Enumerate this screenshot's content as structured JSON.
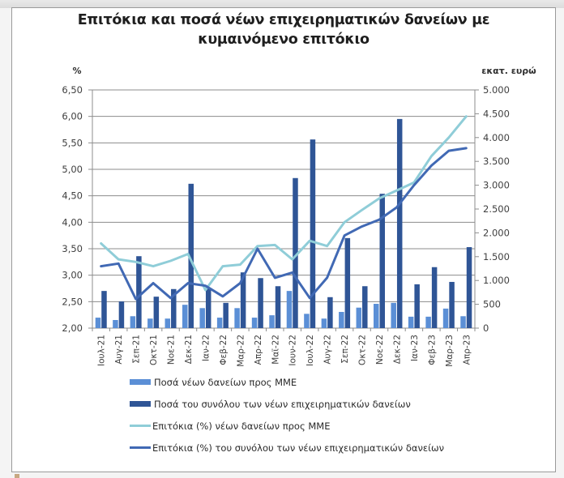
{
  "header": {
    "title_line1": "Επιτόκια και ποσά νέων επιχειρηματικών δανείων με",
    "title_line2": "κυμαινόμενο επιτόκιο"
  },
  "axes": {
    "left_unit": "%",
    "right_unit": "εκατ. ευρώ",
    "left_ticks": [
      "2,00",
      "2,50",
      "3,00",
      "3,50",
      "4,00",
      "4,50",
      "5,00",
      "5,50",
      "6,00",
      "6,50"
    ],
    "right_ticks": [
      "0",
      "500",
      "1.000",
      "1.500",
      "2.000",
      "2.500",
      "3.000",
      "3.500",
      "4.000",
      "4.500",
      "5.000"
    ]
  },
  "legend": {
    "items": [
      {
        "label": "Ποσά νέων δανείων προς ΜΜΕ",
        "kind": "bar",
        "color": "#5b8fd6"
      },
      {
        "label": "Ποσά του συνόλου των νέων επιχειρηματικών δανείων",
        "kind": "bar",
        "color": "#2f5596"
      },
      {
        "label": "Επιτόκια (%) νέων δανείων προς ΜΜΕ",
        "kind": "line",
        "color": "#8fcdd8"
      },
      {
        "label": "Επιτόκια (%) του συνόλου των νέων επιχειρηματικών δανείων",
        "kind": "line",
        "color": "#4169b4"
      }
    ]
  },
  "colors": {
    "sme_bar": "#5b8fd6",
    "total_bar": "#2f5596",
    "sme_line": "#8fcdd8",
    "total_line": "#4169b4",
    "grid": "#8c8c8c"
  },
  "chart_data": {
    "type": "bar+line (dual axis)",
    "title": "Επιτόκια και ποσά νέων επιχειρηματικών δανείων με κυμαινόμενο επιτόκιο",
    "categories": [
      "Ιουλ-21",
      "Αυγ-21",
      "Σεπ-21",
      "Οκτ-21",
      "Νοε-21",
      "Δεκ-21",
      "Ιαν-22",
      "Φεβ-22",
      "Μαρ-22",
      "Απρ-22",
      "Μαϊ-22",
      "Ιουν-22",
      "Ιουλ-22",
      "Αυγ-22",
      "Σεπ-22",
      "Οκτ-22",
      "Νοε-22",
      "Δεκ-22",
      "Ιαν-23",
      "Φεβ-23",
      "Μαρ-23",
      "Απρ-23"
    ],
    "ylabel_left": "%",
    "ylabel_right": "εκατ. ευρώ",
    "ylim_left": [
      2.0,
      6.5
    ],
    "ylim_right": [
      0,
      5000
    ],
    "grid": true,
    "legend_position": "bottom",
    "series": [
      {
        "name": "Ποσά νέων δανείων προς ΜΜΕ",
        "type": "bar",
        "axis": "right",
        "values": [
          220,
          170,
          250,
          200,
          200,
          490,
          420,
          220,
          420,
          220,
          270,
          780,
          300,
          200,
          340,
          430,
          510,
          530,
          240,
          240,
          410,
          250
        ]
      },
      {
        "name": "Ποσά του συνόλου των νέων επιχειρηματικών δανείων",
        "type": "bar",
        "axis": "right",
        "values": [
          780,
          560,
          1510,
          660,
          820,
          3030,
          850,
          530,
          1170,
          1050,
          880,
          3150,
          3960,
          650,
          1890,
          880,
          2820,
          4390,
          920,
          1280,
          970,
          1700
        ]
      },
      {
        "name": "Επιτόκια (%) νέων δανείων προς ΜΜΕ",
        "type": "line",
        "axis": "left",
        "values": [
          3.6,
          3.3,
          3.25,
          3.17,
          3.27,
          3.4,
          2.72,
          3.17,
          3.2,
          3.55,
          3.57,
          3.3,
          3.65,
          3.55,
          4.0,
          4.23,
          4.45,
          4.6,
          4.75,
          5.25,
          5.6,
          6.0
        ]
      },
      {
        "name": "Επιτόκια (%) του συνόλου των νέων επιχειρηματικών δανείων",
        "type": "line",
        "axis": "left",
        "values": [
          3.17,
          3.22,
          2.55,
          2.85,
          2.57,
          2.85,
          2.8,
          2.6,
          2.85,
          3.5,
          2.95,
          3.05,
          2.57,
          2.95,
          3.75,
          3.92,
          4.05,
          4.28,
          4.7,
          5.07,
          5.35,
          5.4
        ]
      }
    ]
  }
}
